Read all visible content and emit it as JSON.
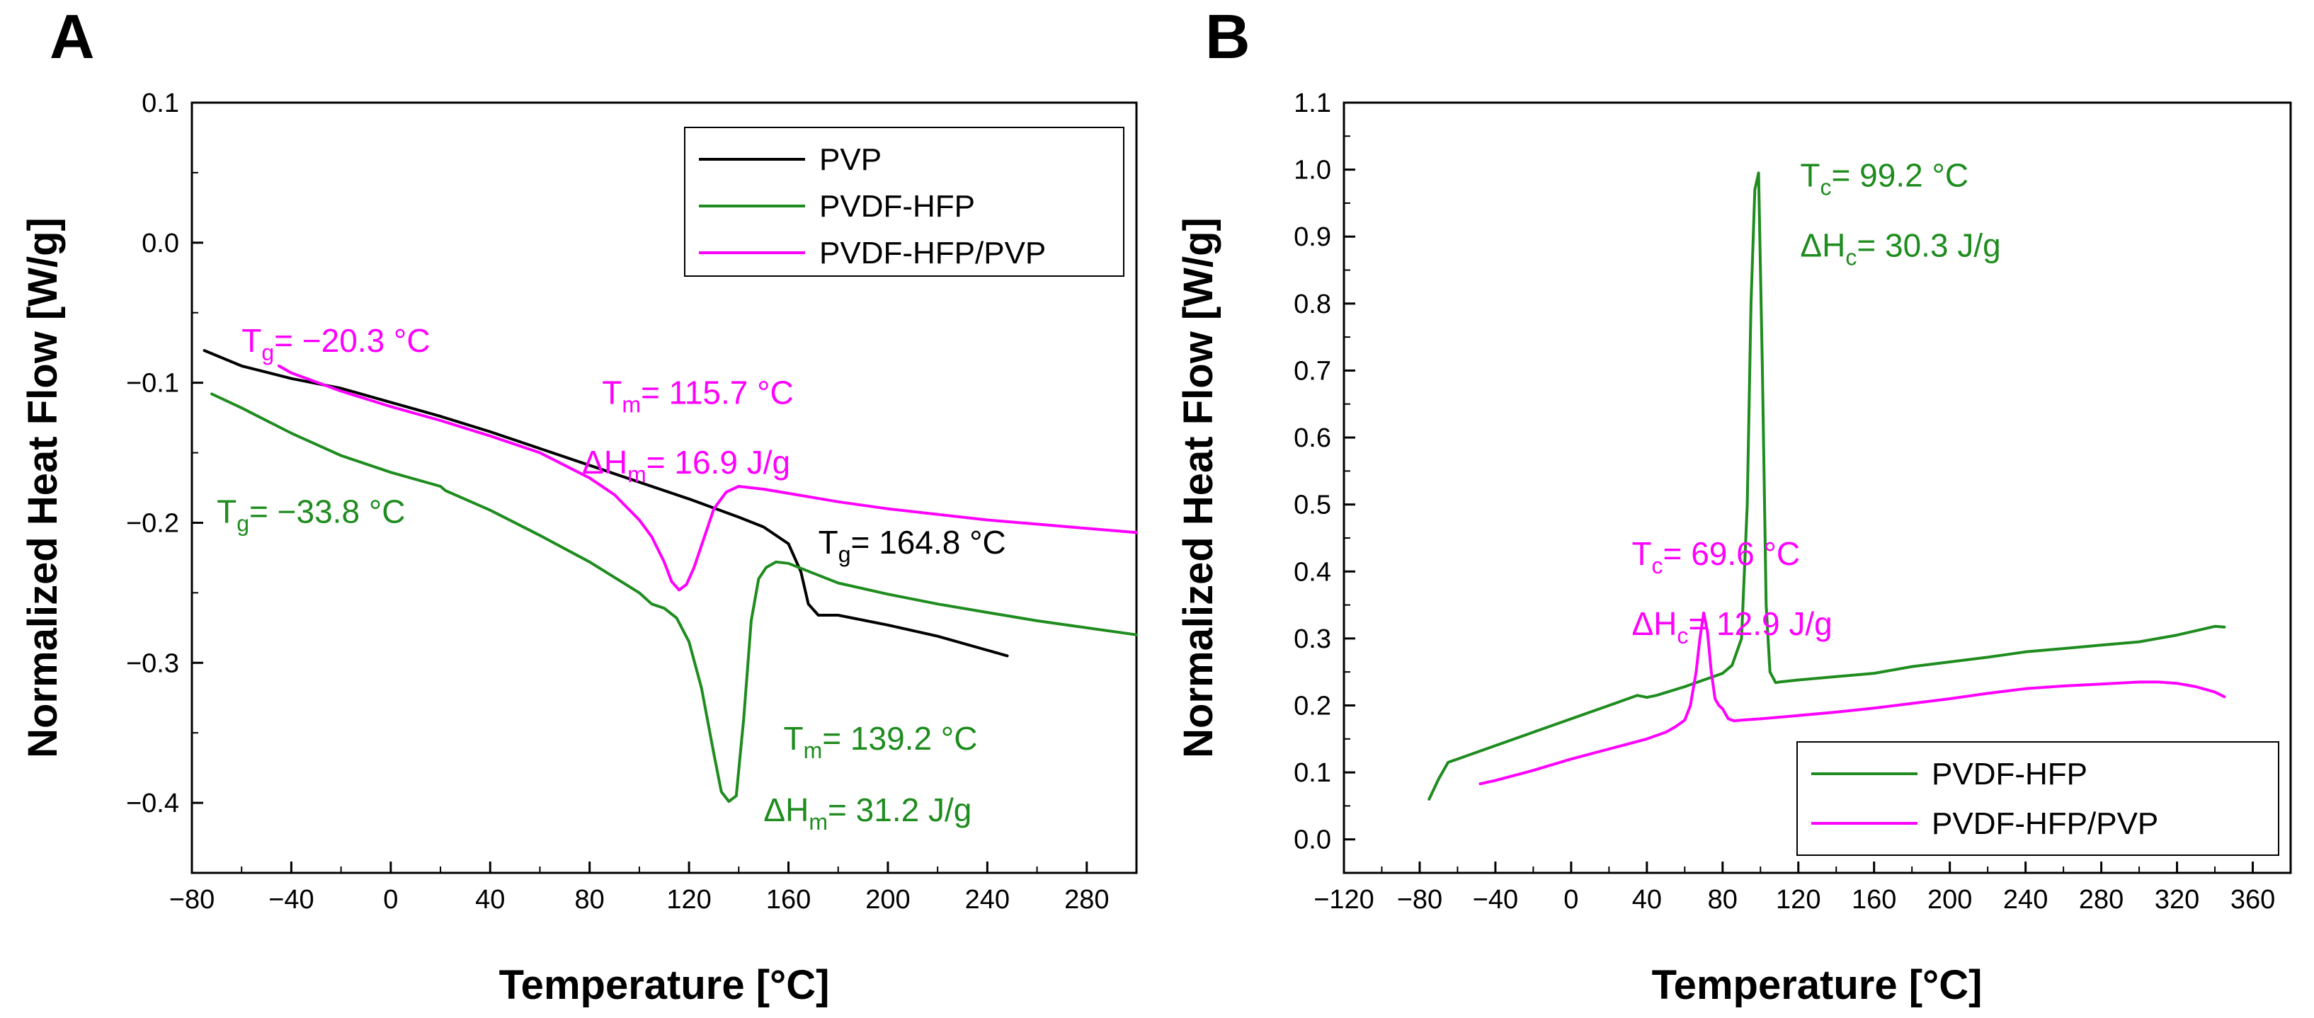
{
  "chart_data": [
    {
      "panel": "A",
      "type": "line",
      "xlabel": "Temperature [°C]",
      "ylabel": "Normalized Heat Flow [W/g]",
      "xlim": [
        -80,
        300
      ],
      "ylim": [
        -0.45,
        0.1
      ],
      "xticks": [
        -80,
        -40,
        0,
        40,
        80,
        120,
        160,
        200,
        240,
        280
      ],
      "yticks": [
        -0.4,
        -0.3,
        -0.2,
        -0.1,
        0.0,
        0.1
      ],
      "xtick_labels": [
        "−80",
        "−40",
        "0",
        "40",
        "80",
        "120",
        "160",
        "200",
        "240",
        "280"
      ],
      "ytick_labels": [
        "−0.4",
        "−0.3",
        "−0.2",
        "−0.1",
        "0.0",
        "0.1"
      ],
      "legend": "top-right",
      "series": [
        {
          "name": "PVP",
          "color": "#000000",
          "x": [
            -75,
            -60,
            -40,
            -20,
            0,
            20,
            40,
            60,
            80,
            100,
            120,
            140,
            150,
            160,
            165,
            168,
            172,
            180,
            200,
            220,
            240,
            248
          ],
          "y": [
            -0.077,
            -0.088,
            -0.097,
            -0.104,
            -0.114,
            -0.124,
            -0.135,
            -0.147,
            -0.159,
            -0.171,
            -0.183,
            -0.196,
            -0.203,
            -0.215,
            -0.235,
            -0.258,
            -0.266,
            -0.266,
            -0.273,
            -0.281,
            -0.291,
            -0.295
          ]
        },
        {
          "name": "PVDF-HFP",
          "color": "#1e8c1e",
          "x": [
            -72,
            -60,
            -40,
            -20,
            0,
            20,
            22,
            40,
            60,
            80,
            100,
            105,
            110,
            115,
            120,
            125,
            130,
            133,
            136,
            139,
            142,
            145,
            148,
            151,
            155,
            160,
            170,
            180,
            200,
            220,
            240,
            260,
            280,
            300
          ],
          "y": [
            -0.108,
            -0.118,
            -0.136,
            -0.152,
            -0.164,
            -0.174,
            -0.177,
            -0.191,
            -0.209,
            -0.228,
            -0.25,
            -0.258,
            -0.261,
            -0.268,
            -0.285,
            -0.318,
            -0.365,
            -0.392,
            -0.399,
            -0.395,
            -0.34,
            -0.27,
            -0.24,
            -0.232,
            -0.228,
            -0.229,
            -0.236,
            -0.243,
            -0.251,
            -0.258,
            -0.264,
            -0.27,
            -0.275,
            -0.28
          ]
        },
        {
          "name": "PVDF-HFP/PVP",
          "color": "#ff00ff",
          "x": [
            -45,
            -40,
            -20,
            0,
            20,
            40,
            60,
            80,
            90,
            100,
            105,
            110,
            113,
            116,
            119,
            122,
            126,
            130,
            135,
            140,
            150,
            160,
            180,
            200,
            220,
            240,
            260,
            280,
            300
          ],
          "y": [
            -0.088,
            -0.093,
            -0.106,
            -0.117,
            -0.127,
            -0.138,
            -0.15,
            -0.168,
            -0.18,
            -0.198,
            -0.21,
            -0.228,
            -0.242,
            -0.248,
            -0.244,
            -0.232,
            -0.211,
            -0.19,
            -0.178,
            -0.174,
            -0.176,
            -0.179,
            -0.185,
            -0.19,
            -0.194,
            -0.198,
            -0.201,
            -0.204,
            -0.207
          ]
        }
      ],
      "annotations": [
        {
          "text": "Tg= −20.3 °C",
          "main": "T",
          "sub": "g",
          "rest": "= −20.3 °C",
          "color": "#ff00ff",
          "x": -60,
          "y": -0.078
        },
        {
          "text": "Tm= 115.7 °C",
          "main": "T",
          "sub": "m",
          "rest": "= 115.7 °C",
          "color": "#ff00ff",
          "x": 85,
          "y": -0.115
        },
        {
          "text": "ΔHm= 16.9 J/g",
          "main": "ΔH",
          "sub": "m",
          "rest": "= 16.9 J/g",
          "color": "#ff00ff",
          "x": 77,
          "y": -0.165
        },
        {
          "text": "Tg= −33.8 °C",
          "main": "T",
          "sub": "g",
          "rest": "= −33.8 °C",
          "color": "#1e8c1e",
          "x": -70,
          "y": -0.2
        },
        {
          "text": "Tg= 164.8 °C",
          "main": "T",
          "sub": "g",
          "rest": "= 164.8 °C",
          "color": "#000000",
          "x": 172,
          "y": -0.222
        },
        {
          "text": "Tm= 139.2 °C",
          "main": "T",
          "sub": "m",
          "rest": "= 139.2 °C",
          "color": "#1e8c1e",
          "x": 158,
          "y": -0.362
        },
        {
          "text": "ΔHm= 31.2 J/g",
          "main": "ΔH",
          "sub": "m",
          "rest": "= 31.2 J/g",
          "color": "#1e8c1e",
          "x": 150,
          "y": -0.413
        }
      ]
    },
    {
      "panel": "B",
      "type": "line",
      "xlabel": "Temperature [°C]",
      "ylabel": "Normalized Heat Flow [W/g]",
      "xlim": [
        -120,
        380
      ],
      "ylim": [
        -0.05,
        1.1
      ],
      "xticks": [
        -120,
        -80,
        -40,
        0,
        40,
        80,
        120,
        160,
        200,
        240,
        280,
        320,
        360
      ],
      "yticks": [
        0.0,
        0.1,
        0.2,
        0.3,
        0.4,
        0.5,
        0.6,
        0.7,
        0.8,
        0.9,
        1.0,
        1.1
      ],
      "xtick_labels": [
        "−120",
        "−80",
        "−40",
        "0",
        "40",
        "80",
        "120",
        "160",
        "200",
        "240",
        "280",
        "320",
        "360"
      ],
      "ytick_labels": [
        "0.0",
        "0.1",
        "0.2",
        "0.3",
        "0.4",
        "0.5",
        "0.6",
        "0.7",
        "0.8",
        "0.9",
        "1.0",
        "1.1"
      ],
      "legend": "bottom-right",
      "series": [
        {
          "name": "PVDF-HFP",
          "color": "#1e8c1e",
          "x": [
            -75,
            -70,
            -65,
            -60,
            -40,
            -20,
            0,
            20,
            35,
            40,
            45,
            60,
            70,
            80,
            85,
            90,
            93,
            95,
            97,
            99,
            101,
            103,
            105,
            108,
            110,
            120,
            140,
            160,
            180,
            200,
            220,
            240,
            260,
            280,
            300,
            320,
            340,
            345
          ],
          "y": [
            0.06,
            0.09,
            0.115,
            0.12,
            0.14,
            0.16,
            0.18,
            0.2,
            0.215,
            0.212,
            0.215,
            0.228,
            0.238,
            0.248,
            0.26,
            0.3,
            0.5,
            0.8,
            0.97,
            0.995,
            0.7,
            0.35,
            0.25,
            0.234,
            0.235,
            0.238,
            0.243,
            0.248,
            0.258,
            0.265,
            0.272,
            0.28,
            0.285,
            0.29,
            0.295,
            0.305,
            0.318,
            0.317
          ]
        },
        {
          "name": "PVDF-HFP/PVP",
          "color": "#ff00ff",
          "x": [
            -48,
            -40,
            -20,
            0,
            20,
            40,
            50,
            55,
            60,
            63,
            66,
            68,
            70,
            72,
            74,
            76,
            78,
            80,
            83,
            86,
            90,
            100,
            120,
            140,
            160,
            180,
            200,
            220,
            240,
            260,
            280,
            300,
            310,
            320,
            330,
            340,
            345
          ],
          "y": [
            0.083,
            0.088,
            0.103,
            0.12,
            0.135,
            0.15,
            0.16,
            0.168,
            0.178,
            0.2,
            0.25,
            0.3,
            0.338,
            0.31,
            0.25,
            0.21,
            0.2,
            0.195,
            0.18,
            0.177,
            0.178,
            0.18,
            0.185,
            0.19,
            0.196,
            0.203,
            0.21,
            0.218,
            0.225,
            0.229,
            0.232,
            0.235,
            0.235,
            0.233,
            0.228,
            0.22,
            0.213
          ]
        }
      ],
      "annotations": [
        {
          "text": "Tc= 99.2 °C",
          "main": "T",
          "sub": "c",
          "rest": "= 99.2 °C",
          "color": "#1e8c1e",
          "x": 121,
          "y": 0.975
        },
        {
          "text": "ΔHc= 30.3 J/g",
          "main": "ΔH",
          "sub": "c",
          "rest": "= 30.3 J/g",
          "color": "#1e8c1e",
          "x": 121,
          "y": 0.87
        },
        {
          "text": "Tc= 69.6 °C",
          "main": "T",
          "sub": "c",
          "rest": "= 69.6 °C",
          "color": "#ff00ff",
          "x": 32,
          "y": 0.41
        },
        {
          "text": "ΔHc= 12.9 J/g",
          "main": "ΔH",
          "sub": "c",
          "rest": "= 12.9 J/g",
          "color": "#ff00ff",
          "x": 32,
          "y": 0.305
        }
      ]
    }
  ]
}
